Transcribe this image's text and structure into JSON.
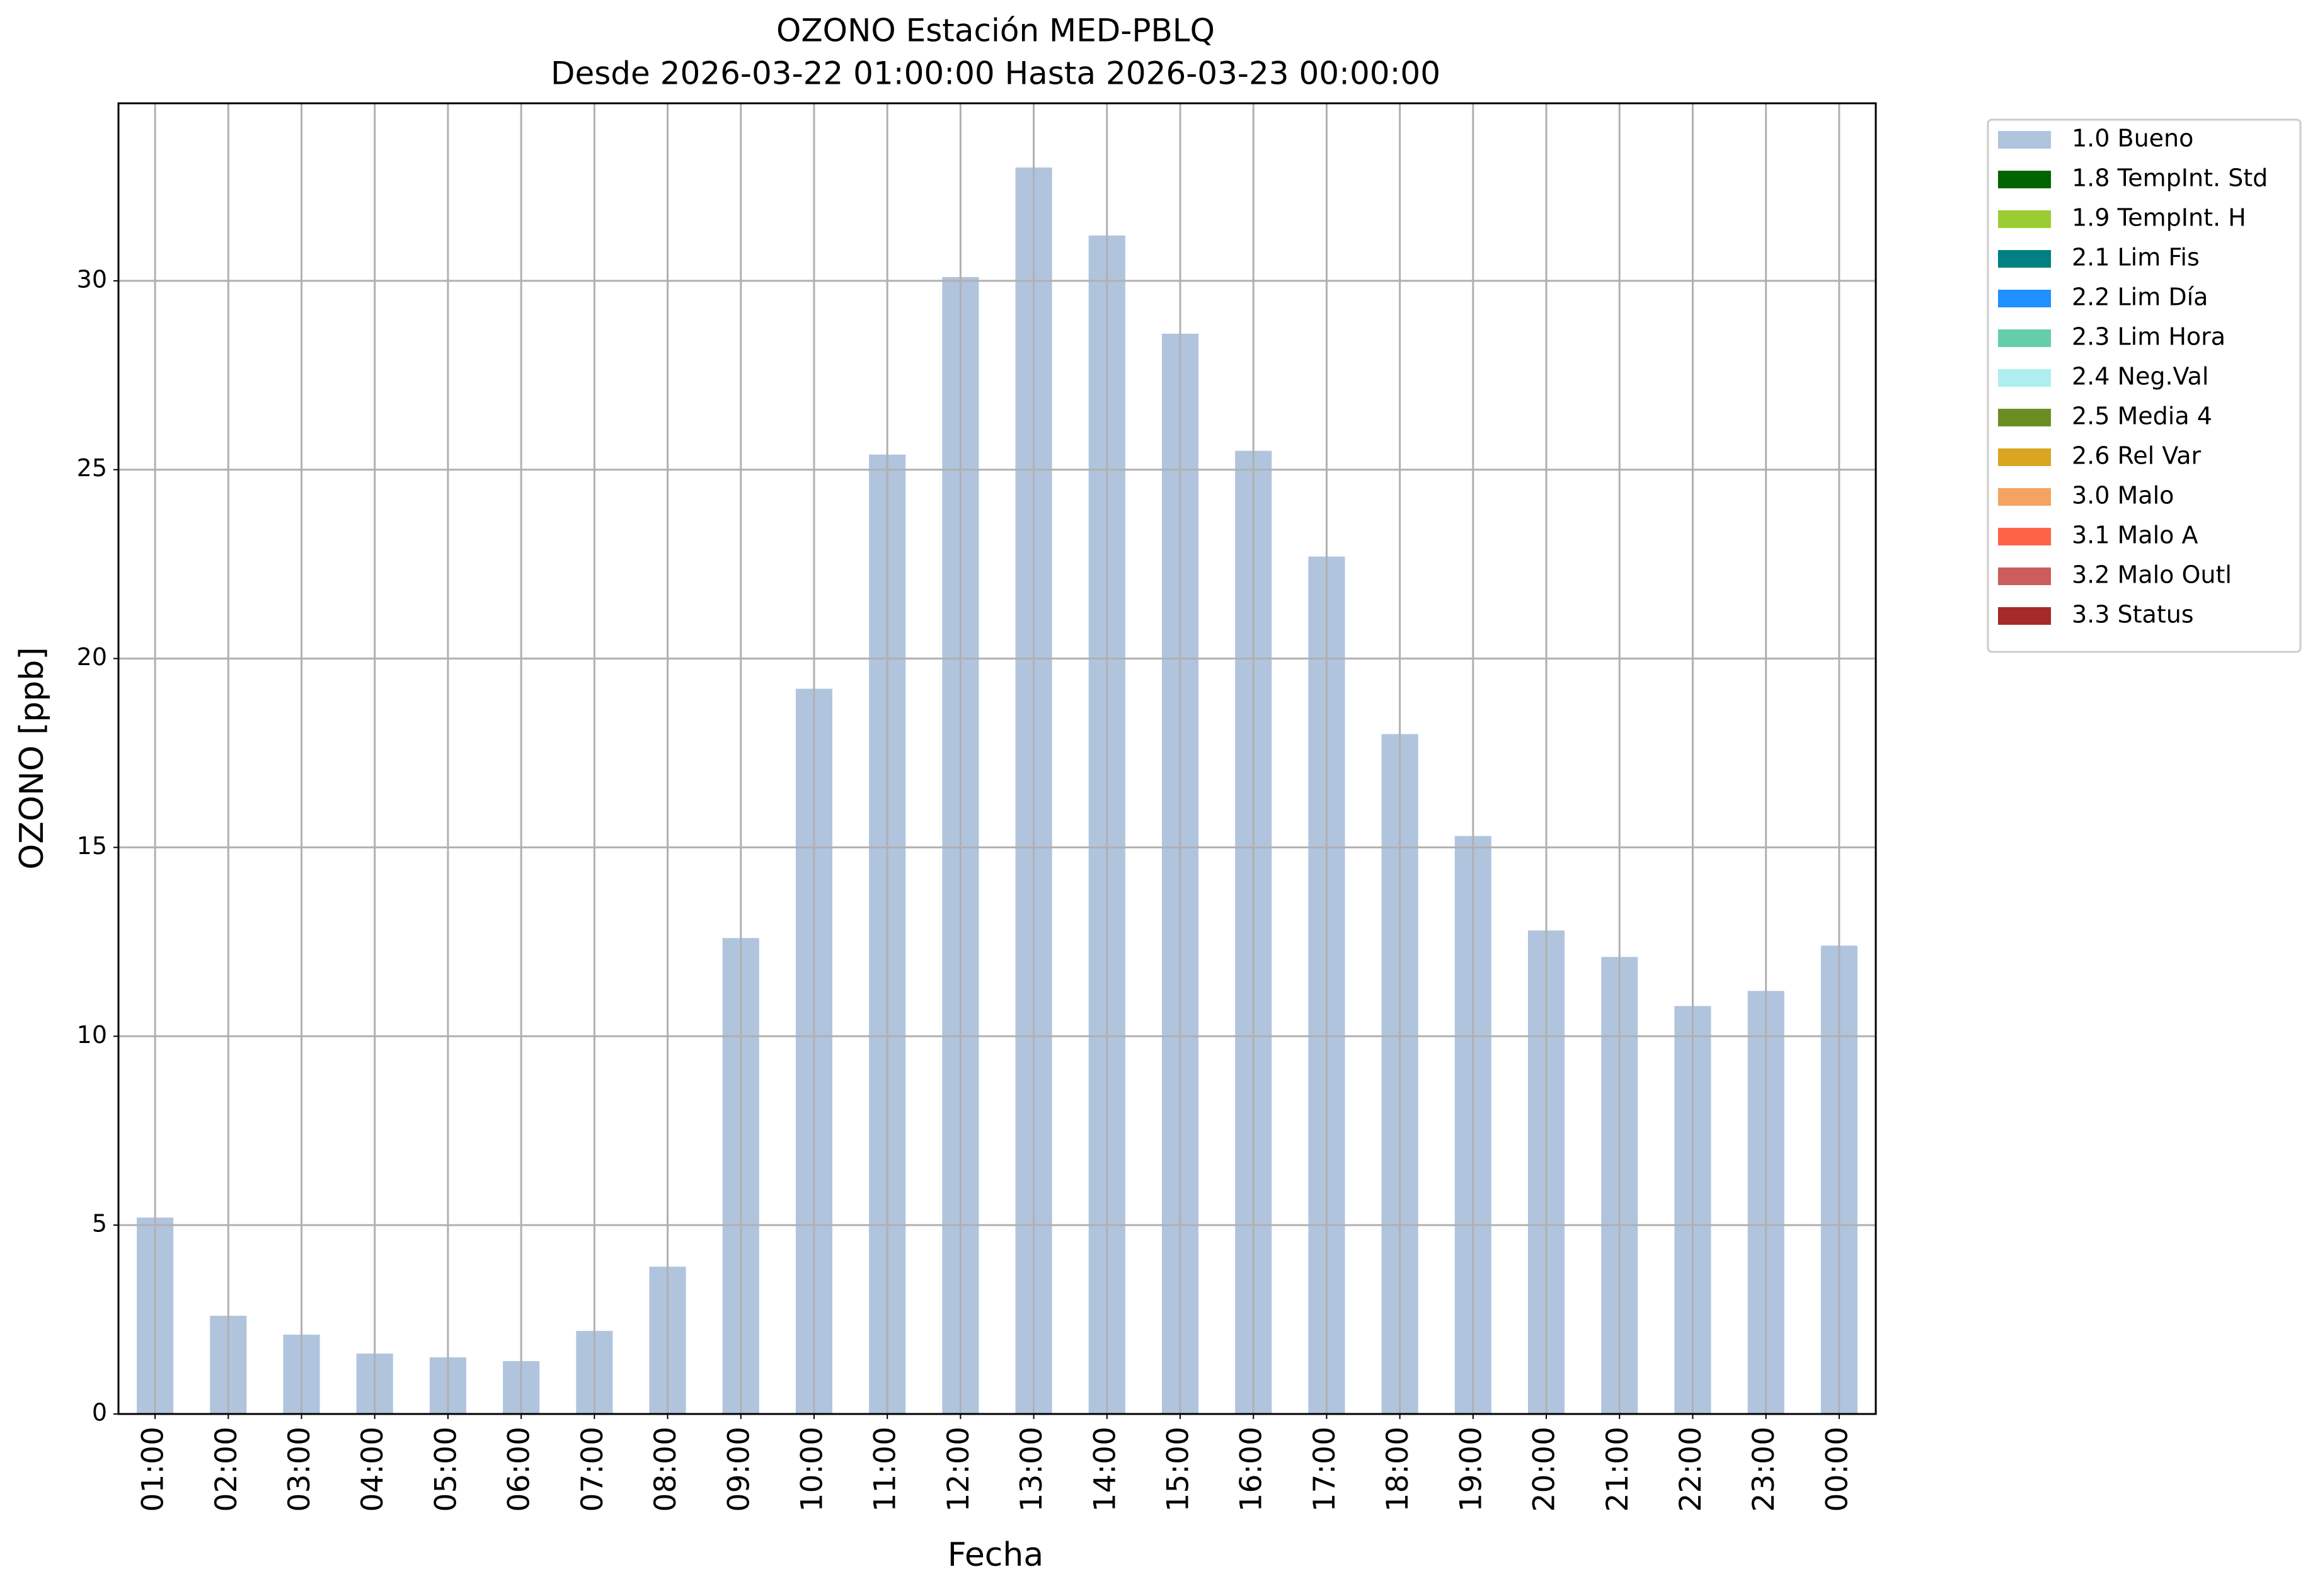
{
  "chart_data": {
    "type": "bar",
    "title": "OZONO Estación MED-PBLQ",
    "subtitle": "Desde 2026-03-22 01:00:00 Hasta 2026-03-23 00:00:00",
    "x_label": "Fecha",
    "y_label": "OZONO [ppb]",
    "categories": [
      "01:00",
      "02:00",
      "03:00",
      "04:00",
      "05:00",
      "06:00",
      "07:00",
      "08:00",
      "09:00",
      "10:00",
      "11:00",
      "12:00",
      "13:00",
      "14:00",
      "15:00",
      "16:00",
      "17:00",
      "18:00",
      "19:00",
      "20:00",
      "21:00",
      "22:00",
      "23:00",
      "00:00"
    ],
    "series": [
      {
        "name": "1.0 Bueno",
        "color": "#b0c4de",
        "values": [
          5.2,
          2.6,
          2.1,
          1.6,
          1.5,
          1.4,
          2.2,
          3.9,
          12.6,
          19.2,
          25.4,
          30.1,
          33.0,
          31.2,
          28.6,
          25.5,
          22.7,
          18.0,
          15.3,
          12.8,
          12.1,
          10.8,
          11.2,
          12.4
        ]
      }
    ],
    "legend_entries": [
      {
        "name": "1.8 TempInt. Std",
        "color": "#006400"
      },
      {
        "name": "1.9 TempInt. H",
        "color": "#9acd32"
      },
      {
        "name": "2.1 Lim Fis",
        "color": "#008080"
      },
      {
        "name": "2.2 Lim Día",
        "color": "#1e90ff"
      },
      {
        "name": "2.3 Lim Hora",
        "color": "#66cdaa"
      },
      {
        "name": "2.4 Neg.Val",
        "color": "#afeeee"
      },
      {
        "name": "2.5 Media 4",
        "color": "#6b8e23"
      },
      {
        "name": "2.6 Rel Var",
        "color": "#daa520"
      },
      {
        "name": "3.0 Malo",
        "color": "#f4a460"
      },
      {
        "name": "3.1 Malo A",
        "color": "#ff6347"
      },
      {
        "name": "3.2 Malo Outl",
        "color": "#cd5c5c"
      },
      {
        "name": "3.3 Status",
        "color": "#a52a2a"
      }
    ],
    "ylim": [
      0,
      34.7
    ],
    "yticks": [
      0,
      5,
      10,
      15,
      20,
      25,
      30
    ],
    "grid": true,
    "legend_position": "outside-upper-right"
  }
}
